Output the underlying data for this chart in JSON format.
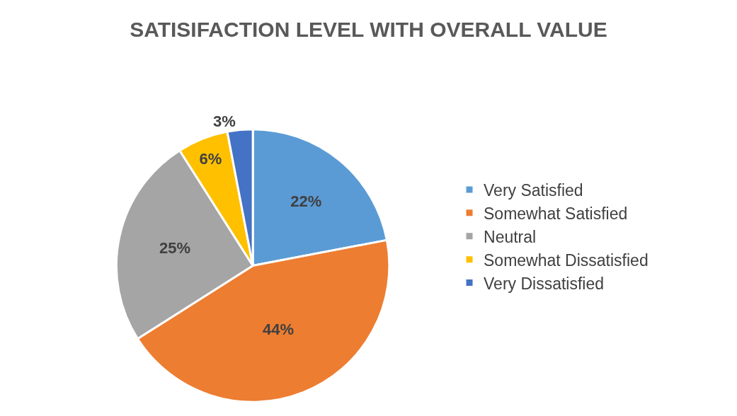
{
  "chart_data": {
    "type": "pie",
    "title": "SATISIFACTION LEVEL WITH OVERALL VALUE",
    "categories": [
      "Very Satisfied",
      "Somewhat Satisfied",
      "Neutral",
      "Somewhat Dissatisfied",
      "Very Dissatisfied"
    ],
    "values": [
      22,
      44,
      25,
      6,
      3
    ],
    "colors": [
      "#5b9bd5",
      "#ed7d31",
      "#a5a5a5",
      "#ffc000",
      "#4472c4"
    ],
    "value_labels": [
      "22%",
      "44%",
      "25%",
      "6%",
      "3%"
    ],
    "legend": "right"
  }
}
